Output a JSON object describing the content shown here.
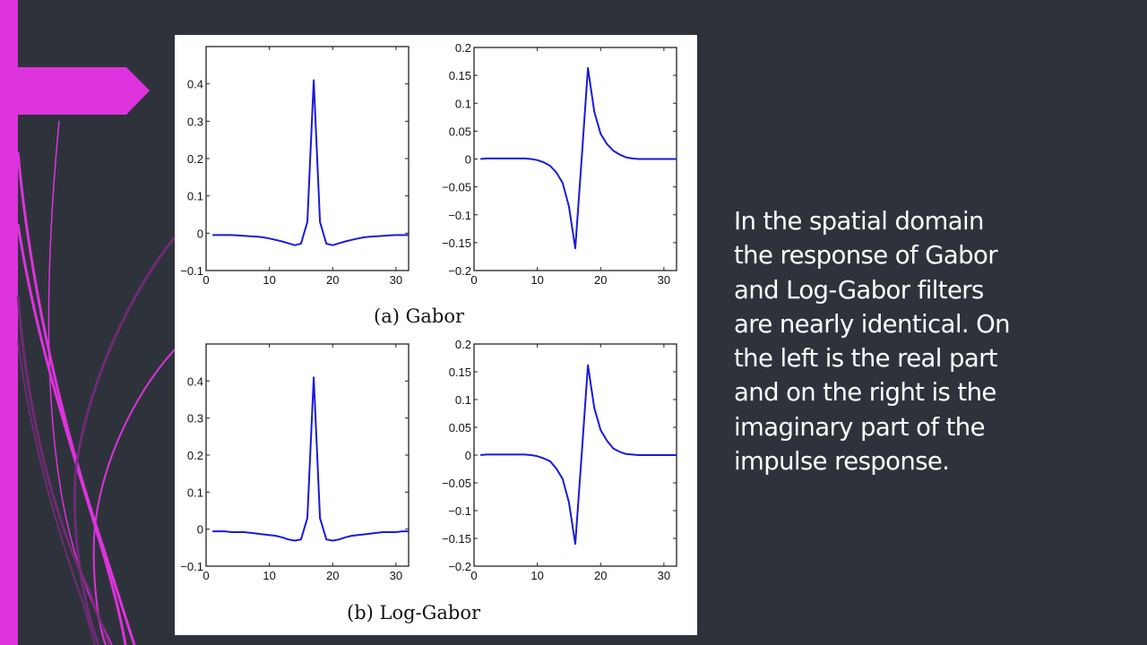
{
  "slide": {
    "background_color": "#2e333b",
    "accent_color": "#dd33dd",
    "text_color": "#ffffff",
    "body_lines": [
      "In the spatial domain",
      "the response of Gabor",
      "and Log-Gabor filters",
      "are nearly identical. On",
      "the left is the real part",
      "and on the right is the",
      "imaginary part of the",
      "impulse response."
    ]
  },
  "figure": {
    "captions": [
      "(a) Gabor",
      "(b) Log-Gabor"
    ],
    "line_color": "#1a1adf"
  },
  "chart_data": [
    {
      "type": "line",
      "title": "(a) Gabor — real part",
      "xlabel": "",
      "ylabel": "",
      "xlim": [
        0,
        32
      ],
      "ylim": [
        -0.1,
        0.5
      ],
      "xticks": [
        0,
        10,
        20,
        30
      ],
      "yticks": [
        -0.1,
        0,
        0.1,
        0.2,
        0.3,
        0.4
      ],
      "ytick_labels": [
        "−0.1",
        "0",
        "0.1",
        "0.2",
        "0.3",
        "0.4"
      ],
      "grid": false,
      "x": [
        1,
        2,
        3,
        4,
        5,
        6,
        7,
        8,
        9,
        10,
        11,
        12,
        13,
        14,
        15,
        16,
        17,
        18,
        19,
        20,
        21,
        22,
        23,
        24,
        25,
        26,
        27,
        28,
        29,
        30,
        31,
        32
      ],
      "series": [
        {
          "name": "real",
          "values": [
            -0.005,
            -0.005,
            -0.005,
            -0.005,
            -0.006,
            -0.007,
            -0.008,
            -0.009,
            -0.011,
            -0.014,
            -0.018,
            -0.022,
            -0.027,
            -0.032,
            -0.028,
            0.03,
            0.41,
            0.03,
            -0.028,
            -0.032,
            -0.027,
            -0.022,
            -0.018,
            -0.014,
            -0.011,
            -0.009,
            -0.008,
            -0.007,
            -0.006,
            -0.005,
            -0.005,
            -0.005
          ]
        }
      ]
    },
    {
      "type": "line",
      "title": "(a) Gabor — imaginary part",
      "xlabel": "",
      "ylabel": "",
      "xlim": [
        0,
        32
      ],
      "ylim": [
        -0.2,
        0.2
      ],
      "xticks": [
        0,
        10,
        20,
        30
      ],
      "yticks": [
        -0.2,
        -0.15,
        -0.1,
        -0.05,
        0,
        0.05,
        0.1,
        0.15,
        0.2
      ],
      "ytick_labels": [
        "−0.2",
        "−0.15",
        "−0.1",
        "−0.05",
        "0",
        "0.05",
        "0.1",
        "0.15",
        "0.2"
      ],
      "grid": false,
      "x": [
        1,
        2,
        3,
        4,
        5,
        6,
        7,
        8,
        9,
        10,
        11,
        12,
        13,
        14,
        15,
        16,
        17,
        18,
        19,
        20,
        21,
        22,
        23,
        24,
        25,
        26,
        27,
        28,
        29,
        30,
        31,
        32
      ],
      "series": [
        {
          "name": "imaginary",
          "values": [
            0,
            0.001,
            0.001,
            0.001,
            0.001,
            0.001,
            0.001,
            0.001,
            0.0,
            -0.002,
            -0.006,
            -0.012,
            -0.024,
            -0.043,
            -0.085,
            -0.16,
            0.0,
            0.163,
            0.085,
            0.045,
            0.027,
            0.015,
            0.008,
            0.003,
            0.001,
            0,
            0,
            0,
            0,
            0,
            0,
            0
          ]
        }
      ]
    },
    {
      "type": "line",
      "title": "(b) Log-Gabor — real part",
      "xlabel": "",
      "ylabel": "",
      "xlim": [
        0,
        32
      ],
      "ylim": [
        -0.1,
        0.5
      ],
      "xticks": [
        0,
        10,
        20,
        30
      ],
      "yticks": [
        -0.1,
        0,
        0.1,
        0.2,
        0.3,
        0.4
      ],
      "ytick_labels": [
        "−0.1",
        "0",
        "0.1",
        "0.2",
        "0.3",
        "0.4"
      ],
      "grid": false,
      "x": [
        1,
        2,
        3,
        4,
        5,
        6,
        7,
        8,
        9,
        10,
        11,
        12,
        13,
        14,
        15,
        16,
        17,
        18,
        19,
        20,
        21,
        22,
        23,
        24,
        25,
        26,
        27,
        28,
        29,
        30,
        31,
        32
      ],
      "series": [
        {
          "name": "real",
          "values": [
            -0.006,
            -0.006,
            -0.006,
            -0.008,
            -0.008,
            -0.008,
            -0.01,
            -0.012,
            -0.014,
            -0.016,
            -0.018,
            -0.022,
            -0.028,
            -0.031,
            -0.028,
            0.03,
            0.41,
            0.03,
            -0.028,
            -0.031,
            -0.028,
            -0.022,
            -0.018,
            -0.016,
            -0.014,
            -0.012,
            -0.01,
            -0.008,
            -0.008,
            -0.008,
            -0.006,
            -0.006
          ]
        }
      ]
    },
    {
      "type": "line",
      "title": "(b) Log-Gabor — imaginary part",
      "xlabel": "",
      "ylabel": "",
      "xlim": [
        0,
        32
      ],
      "ylim": [
        -0.2,
        0.2
      ],
      "xticks": [
        0,
        10,
        20,
        30
      ],
      "yticks": [
        -0.2,
        -0.15,
        -0.1,
        -0.05,
        0,
        0.05,
        0.1,
        0.15,
        0.2
      ],
      "ytick_labels": [
        "−0.2",
        "−0.15",
        "−0.1",
        "−0.05",
        "0",
        "0.05",
        "0.1",
        "0.15",
        "0.2"
      ],
      "grid": false,
      "x": [
        1,
        2,
        3,
        4,
        5,
        6,
        7,
        8,
        9,
        10,
        11,
        12,
        13,
        14,
        15,
        16,
        17,
        18,
        19,
        20,
        21,
        22,
        23,
        24,
        25,
        26,
        27,
        28,
        29,
        30,
        31,
        32
      ],
      "series": [
        {
          "name": "imaginary",
          "values": [
            0,
            0.001,
            0.001,
            0.001,
            0.001,
            0.001,
            0.001,
            0.001,
            0.0,
            -0.002,
            -0.006,
            -0.011,
            -0.024,
            -0.043,
            -0.085,
            -0.16,
            0.0,
            0.162,
            0.085,
            0.045,
            0.026,
            0.012,
            0.006,
            0.002,
            0.001,
            0,
            0,
            0,
            0,
            0,
            0,
            0
          ]
        }
      ]
    }
  ]
}
